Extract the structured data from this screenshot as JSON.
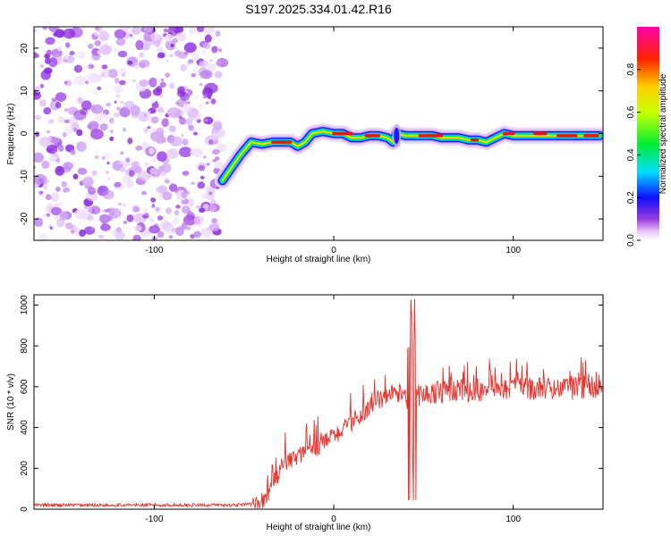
{
  "title": "S197.2025.334.01.42.R16",
  "chart_data": [
    {
      "type": "heatmap",
      "xlabel": "Height of straight line (km)",
      "ylabel": "Frequency (Hz)",
      "xlim": [
        -167,
        150
      ],
      "ylim": [
        -25,
        25
      ],
      "xticks": [
        -100,
        0,
        100
      ],
      "yticks": [
        -20,
        -10,
        0,
        10,
        20
      ],
      "noise_region_x": [
        -167,
        -62
      ],
      "ridge": {
        "x": [
          -62,
          -57,
          -52,
          -46,
          -40,
          -34,
          -28,
          -24,
          -20,
          -16,
          -12,
          -6,
          0,
          5,
          10,
          15,
          20,
          25,
          30,
          33,
          35,
          40,
          45,
          50,
          55,
          60,
          65,
          70,
          75,
          80,
          85,
          90,
          95,
          100,
          110,
          120,
          130,
          140,
          148
        ],
        "y": [
          -11,
          -8,
          -5,
          -2,
          -2.5,
          -2,
          -2,
          -2,
          -3,
          -2,
          0,
          0.5,
          0,
          0,
          -1,
          -1,
          -0.5,
          -0.5,
          -1,
          -2,
          0,
          -0.5,
          -0.5,
          -0.5,
          -0.5,
          -1,
          -1,
          -1,
          -1.5,
          -1.5,
          -2,
          -1,
          0,
          -0.5,
          -0.5,
          -0.5,
          -0.5,
          -0.5,
          -0.5
        ]
      },
      "colorbar": {
        "label": "Normalized spectral amplitude",
        "ticks": [
          0.0,
          0.2,
          0.4,
          0.6,
          0.8
        ],
        "range": [
          0,
          1
        ]
      }
    },
    {
      "type": "line",
      "xlabel": "Height of straight line (km)",
      "ylabel": "SNR (10 * v/v)",
      "xlim": [
        -167,
        150
      ],
      "ylim": [
        0,
        1050
      ],
      "xticks": [
        -100,
        0,
        100
      ],
      "yticks": [
        0,
        200,
        400,
        600,
        800,
        1000
      ],
      "color": "#e8302a",
      "envelope": {
        "x": [
          -167,
          -60,
          -50,
          -44,
          -40,
          -37,
          -35,
          -32,
          -30,
          -25,
          -20,
          -15,
          -10,
          -5,
          0,
          5,
          10,
          15,
          20,
          25,
          30,
          35,
          40,
          42,
          43,
          44,
          45,
          50,
          55,
          60,
          65,
          70,
          80,
          90,
          100,
          110,
          120,
          130,
          140,
          150
        ],
        "y": [
          20,
          20,
          22,
          25,
          40,
          70,
          110,
          150,
          200,
          230,
          260,
          280,
          300,
          330,
          360,
          390,
          420,
          460,
          500,
          530,
          560,
          570,
          560,
          520,
          620,
          560,
          560,
          560,
          570,
          575,
          580,
          580,
          580,
          585,
          590,
          590,
          590,
          590,
          595,
          595
        ]
      },
      "spikes": [
        {
          "x": 41.5,
          "y": 1050
        },
        {
          "x": 42,
          "y": 50
        },
        {
          "x": 43,
          "y": 1040
        },
        {
          "x": 44,
          "y": 300
        },
        {
          "x": 44.5,
          "y": 1000
        }
      ]
    }
  ],
  "colors": {
    "line": "#e8302a",
    "noise": "#9a3ae0"
  }
}
